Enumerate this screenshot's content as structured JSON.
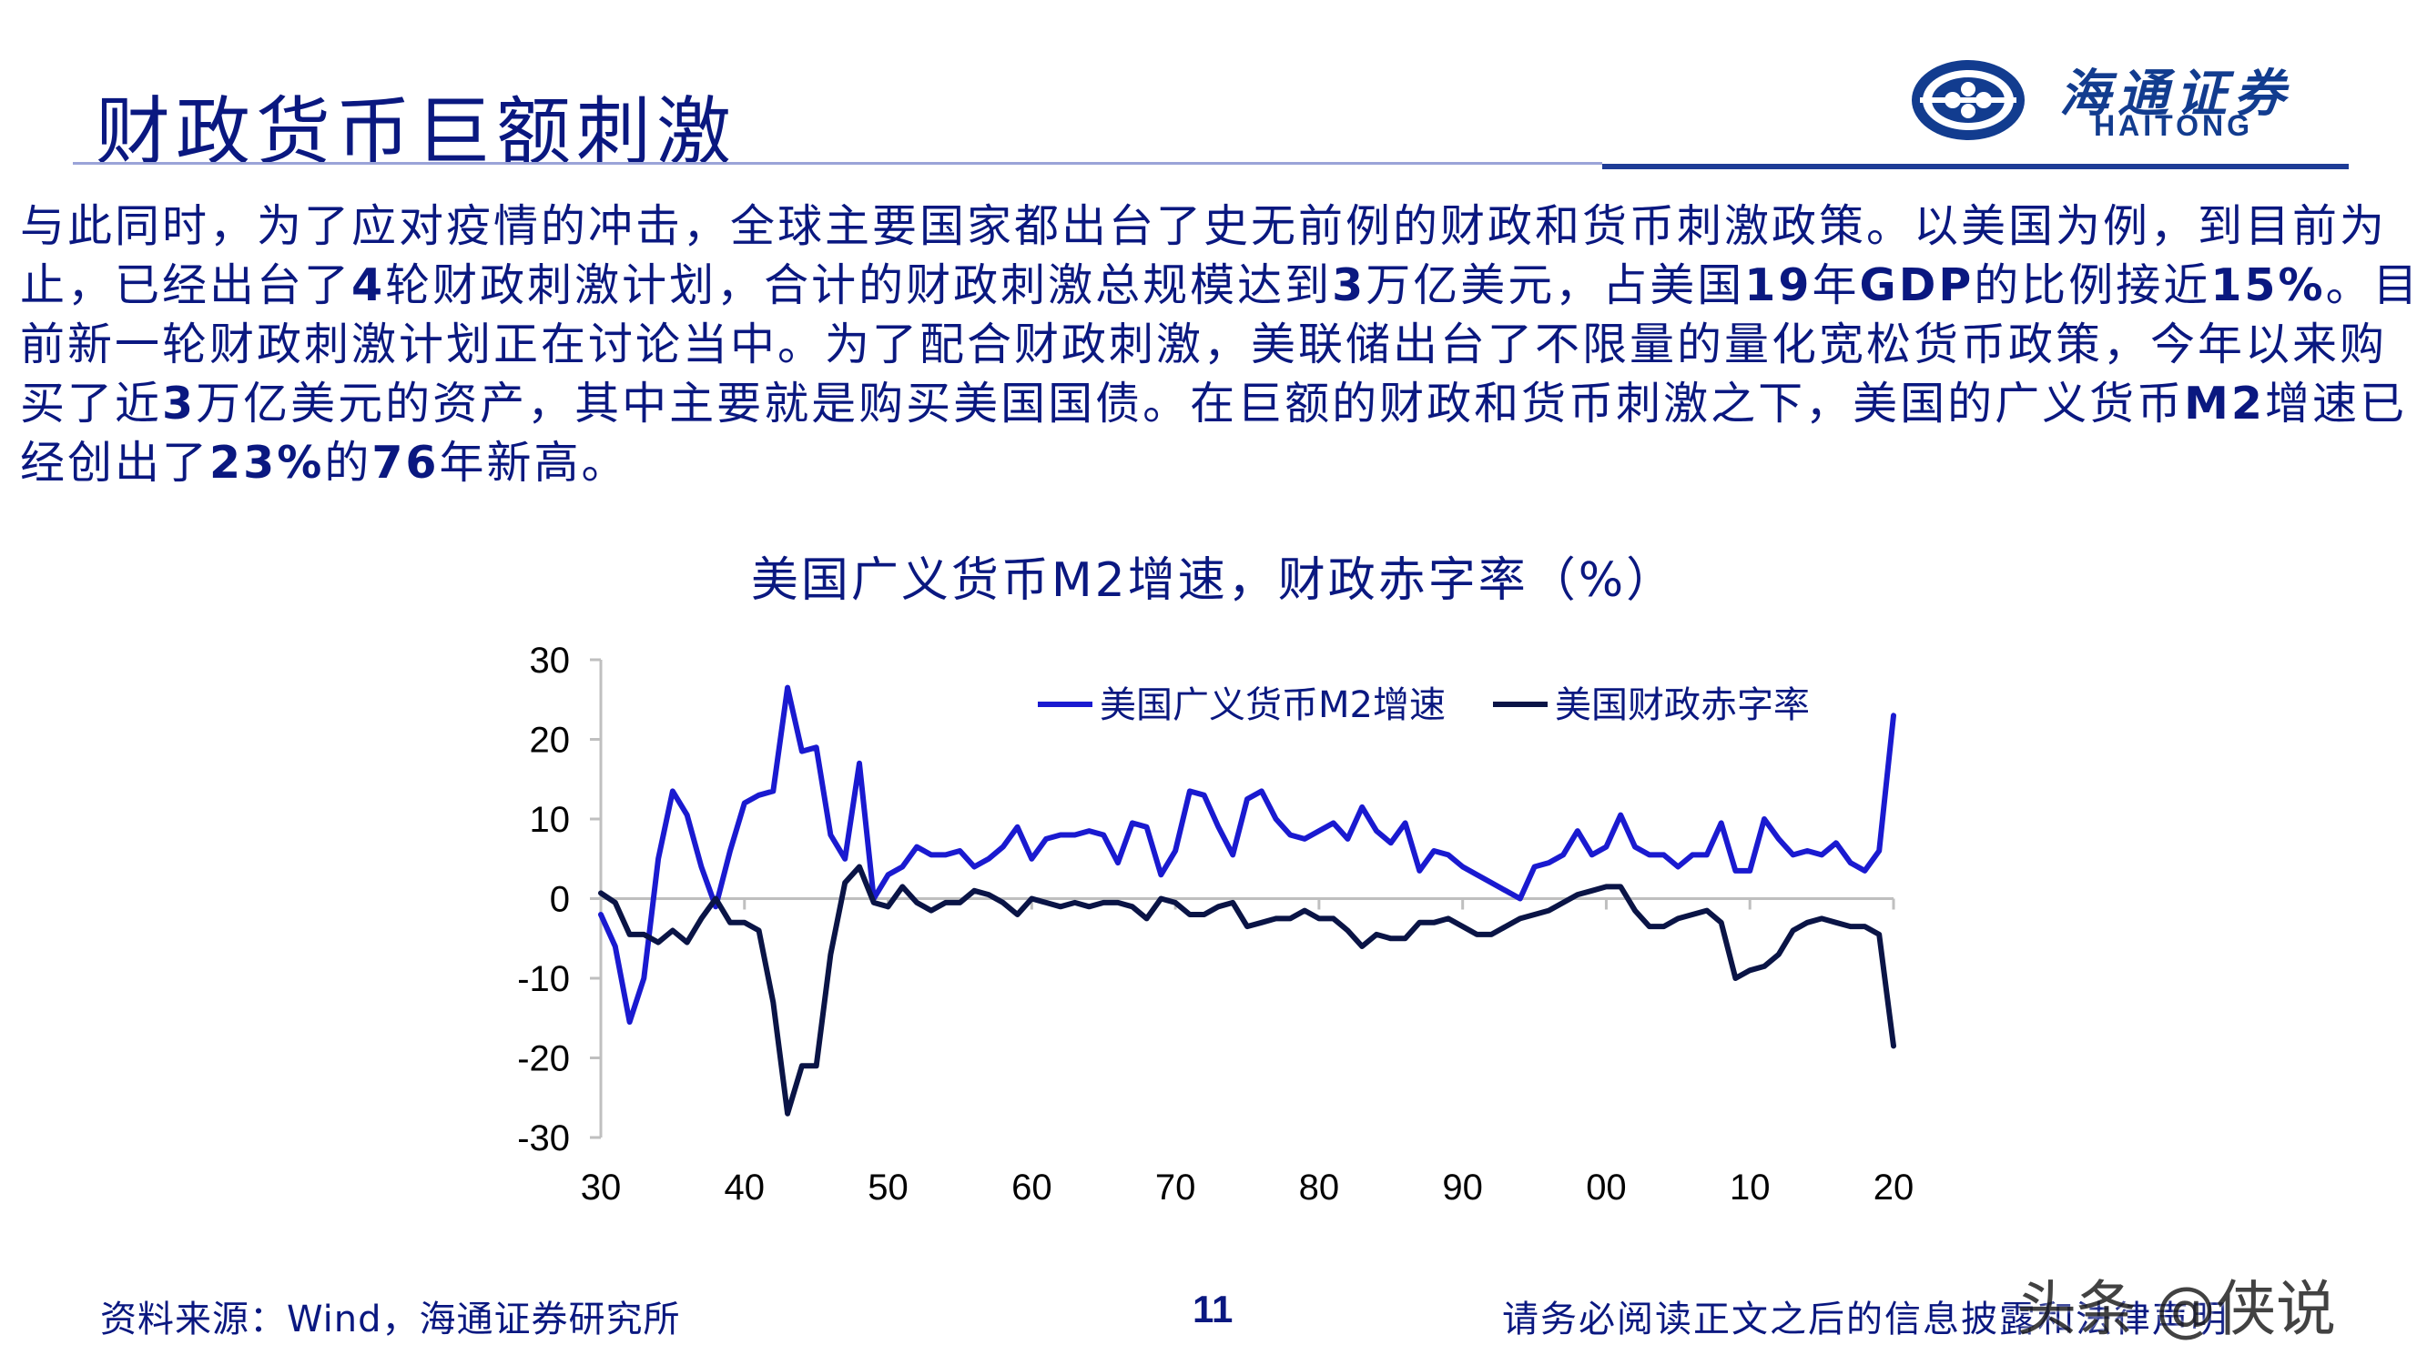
{
  "header": {
    "title": "财政货币巨额刺激",
    "logo_cn": "海通证券",
    "logo_en": "HAITONG",
    "colors": {
      "brand": "#123c8f",
      "title": "#0a1880"
    }
  },
  "body": {
    "p1": "与此同时，为了应对疫情的冲击，全球主要国家都出台了史无前例的财政和货币刺激政策。以美国为例，到目前为止，已经出台了",
    "n1": "4",
    "p2": "轮财政刺激计划，合计的财政刺激总规模达到",
    "n2": "3",
    "p3": "万亿美元，占美国",
    "n3": "19",
    "p4": "年",
    "n4": "GDP",
    "p5": "的比例接近",
    "n5": "15%",
    "p6": "。目前新一轮财政刺激计划正在讨论当中。为了配合财政刺激，美联储出台了不限量的量化宽松货币政策，今年以来购买了近",
    "n6": "3",
    "p7": "万亿美元的资产，其中主要就是购买美国国债。在巨额的财政和货币刺激之下，美国的广义货币",
    "n7": "M2",
    "p8": "增速已经创出了",
    "n8": "23%",
    "p9": "的",
    "n9": "76",
    "p10": "年新高。"
  },
  "chart_data": {
    "type": "line",
    "title": "美国广义货币M2增速，财政赤字率（%）",
    "xlabel": "",
    "ylabel": "",
    "xlim": [
      1930,
      2020
    ],
    "ylim": [
      -30,
      30
    ],
    "y_ticks": [
      30,
      20,
      10,
      0,
      -10,
      -20,
      -30
    ],
    "x_ticks": [
      {
        "value": 1930,
        "label": "30"
      },
      {
        "value": 1940,
        "label": "40"
      },
      {
        "value": 1950,
        "label": "50"
      },
      {
        "value": 1960,
        "label": "60"
      },
      {
        "value": 1970,
        "label": "70"
      },
      {
        "value": 1980,
        "label": "80"
      },
      {
        "value": 1990,
        "label": "90"
      },
      {
        "value": 2000,
        "label": "00"
      },
      {
        "value": 2010,
        "label": "10"
      },
      {
        "value": 2020,
        "label": "20"
      }
    ],
    "legend": "top-right",
    "grid": false,
    "series": [
      {
        "name": "美国广义货币M2增速",
        "color": "#1a1ad0",
        "x": [
          1930,
          1931,
          1932,
          1933,
          1934,
          1935,
          1936,
          1937,
          1938,
          1939,
          1940,
          1941,
          1942,
          1943,
          1944,
          1945,
          1946,
          1947,
          1948,
          1949,
          1950,
          1951,
          1952,
          1953,
          1954,
          1955,
          1956,
          1957,
          1958,
          1959,
          1960,
          1961,
          1962,
          1963,
          1964,
          1965,
          1966,
          1967,
          1968,
          1969,
          1970,
          1971,
          1972,
          1973,
          1974,
          1975,
          1976,
          1977,
          1978,
          1979,
          1980,
          1981,
          1982,
          1983,
          1984,
          1985,
          1986,
          1987,
          1988,
          1989,
          1990,
          1991,
          1992,
          1993,
          1994,
          1995,
          1996,
          1997,
          1998,
          1999,
          2000,
          2001,
          2002,
          2003,
          2004,
          2005,
          2006,
          2007,
          2008,
          2009,
          2010,
          2011,
          2012,
          2013,
          2014,
          2015,
          2016,
          2017,
          2018,
          2019,
          2020
        ],
        "values": [
          -2,
          -6,
          -15.5,
          -10,
          5,
          13.5,
          10.5,
          4,
          -1,
          6,
          12,
          13,
          13.5,
          26.5,
          18.5,
          19,
          8,
          5,
          17,
          0,
          3,
          4,
          6.5,
          5.5,
          5.5,
          6,
          4,
          5,
          6.5,
          9,
          5,
          7.5,
          8,
          8,
          8.5,
          8,
          4.5,
          9.5,
          9,
          3,
          6,
          13.5,
          13,
          9,
          5.5,
          12.5,
          13.5,
          10,
          8,
          7.5,
          8.5,
          9.5,
          7.5,
          11.5,
          8.5,
          7,
          9.5,
          3.5,
          6,
          5.5,
          4,
          3,
          2,
          1,
          0,
          4,
          4.5,
          5.5,
          8.5,
          5.5,
          6.5,
          10.5,
          6.5,
          5.5,
          5.5,
          4,
          5.5,
          5.5,
          9.5,
          3.5,
          3.5,
          10,
          7.5,
          5.5,
          6,
          5.5,
          7,
          4.5,
          3.5,
          6,
          23
        ]
      },
      {
        "name": "美国财政赤字率",
        "color": "#0a1446",
        "x": [
          1930,
          1931,
          1932,
          1933,
          1934,
          1935,
          1936,
          1937,
          1938,
          1939,
          1940,
          1941,
          1942,
          1943,
          1944,
          1945,
          1946,
          1947,
          1948,
          1949,
          1950,
          1951,
          1952,
          1953,
          1954,
          1955,
          1956,
          1957,
          1958,
          1959,
          1960,
          1961,
          1962,
          1963,
          1964,
          1965,
          1966,
          1967,
          1968,
          1969,
          1970,
          1971,
          1972,
          1973,
          1974,
          1975,
          1976,
          1977,
          1978,
          1979,
          1980,
          1981,
          1982,
          1983,
          1984,
          1985,
          1986,
          1987,
          1988,
          1989,
          1990,
          1991,
          1992,
          1993,
          1994,
          1995,
          1996,
          1997,
          1998,
          1999,
          2000,
          2001,
          2002,
          2003,
          2004,
          2005,
          2006,
          2007,
          2008,
          2009,
          2010,
          2011,
          2012,
          2013,
          2014,
          2015,
          2016,
          2017,
          2018,
          2019,
          2020
        ],
        "values": [
          0.7,
          -0.5,
          -4.5,
          -4.5,
          -5.5,
          -4,
          -5.5,
          -2.5,
          0,
          -3,
          -3,
          -4,
          -13,
          -27,
          -21,
          -21,
          -7,
          2,
          4,
          -0.5,
          -1,
          1.5,
          -0.5,
          -1.5,
          -0.5,
          -0.5,
          1,
          0.5,
          -0.5,
          -2,
          0,
          -0.5,
          -1,
          -0.5,
          -1,
          -0.5,
          -0.5,
          -1,
          -2.5,
          0,
          -0.5,
          -2,
          -2,
          -1,
          -0.5,
          -3.5,
          -3,
          -2.5,
          -2.5,
          -1.5,
          -2.5,
          -2.5,
          -4,
          -6,
          -4.5,
          -5,
          -5,
          -3,
          -3,
          -2.5,
          -3.5,
          -4.5,
          -4.5,
          -3.5,
          -2.5,
          -2,
          -1.5,
          -0.5,
          0.5,
          1,
          1.5,
          1.5,
          -1.5,
          -3.5,
          -3.5,
          -2.5,
          -2,
          -1.5,
          -3,
          -10,
          -9,
          -8.5,
          -7,
          -4,
          -3,
          -2.5,
          -3,
          -3.5,
          -3.5,
          -4.5,
          -18.5
        ]
      }
    ]
  },
  "footer": {
    "source": "资料来源：Wind，海通证券研究所",
    "page": "11",
    "disclaimer": "请务必阅读正文之后的信息披露和法律声明",
    "watermark": "头条 @侠说"
  }
}
